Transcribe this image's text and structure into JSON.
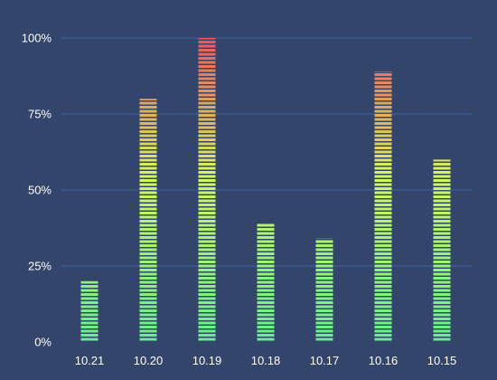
{
  "chart_data": {
    "type": "bar",
    "categories": [
      "10.21",
      "10.20",
      "10.19",
      "10.18",
      "10.17",
      "10.16",
      "10.15"
    ],
    "values": [
      20,
      80,
      100,
      39,
      34,
      89,
      60
    ],
    "ylim": [
      0,
      100
    ],
    "y_ticks": [
      "0%",
      "25%",
      "50%",
      "75%",
      "100%"
    ],
    "grid": true,
    "bar_style": "segmented gradient",
    "colors": {
      "background": "#34456b",
      "gridline": "#3f62a6",
      "bar_bottom": "#62f08e",
      "bar_mid": "#d7f85e",
      "bar_top": "#f0545a",
      "text": "#ffffff"
    }
  }
}
